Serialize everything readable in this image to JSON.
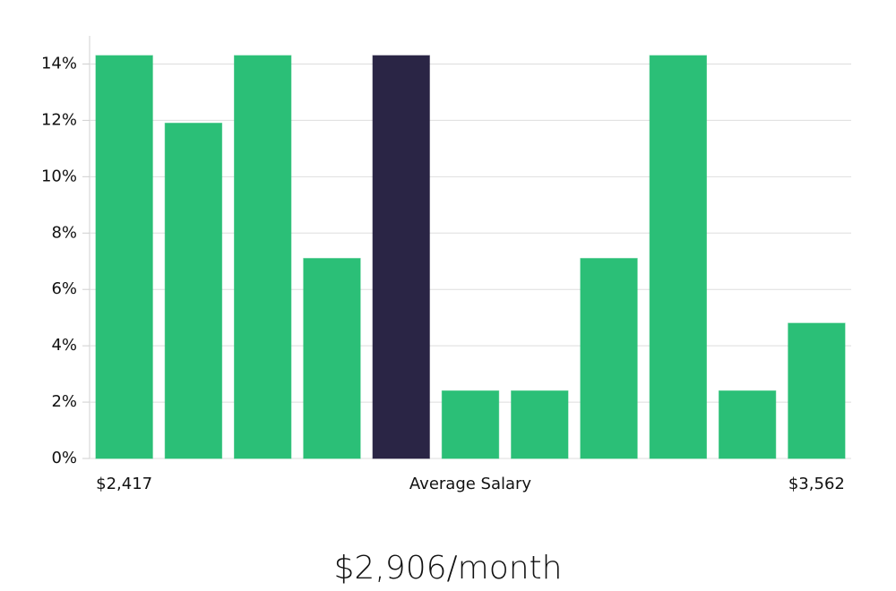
{
  "chart_data": {
    "type": "bar",
    "categories": [
      "$2,417",
      null,
      null,
      null,
      null,
      null,
      null,
      null,
      null,
      null,
      "$3,562"
    ],
    "values": [
      14.3,
      11.9,
      14.3,
      7.1,
      14.3,
      2.4,
      2.4,
      7.1,
      14.3,
      2.4,
      4.8
    ],
    "colors": [
      "#2bbf77",
      "#2bbf77",
      "#2bbf77",
      "#2bbf77",
      "#2a2545",
      "#2bbf77",
      "#2bbf77",
      "#2bbf77",
      "#2bbf77",
      "#2bbf77",
      "#2bbf77"
    ],
    "x_label": "Average Salary",
    "ylim": [
      0,
      15
    ],
    "yticks": [
      {
        "value": 0,
        "label": "0%"
      },
      {
        "value": 2,
        "label": "2%"
      },
      {
        "value": 4,
        "label": "4%"
      },
      {
        "value": 6,
        "label": "6%"
      },
      {
        "value": 8,
        "label": "8%"
      },
      {
        "value": 10,
        "label": "10%"
      },
      {
        "value": 12,
        "label": "12%"
      },
      {
        "value": 14,
        "label": "14%"
      }
    ],
    "grid": true,
    "subtitle": "$2,906/month"
  }
}
